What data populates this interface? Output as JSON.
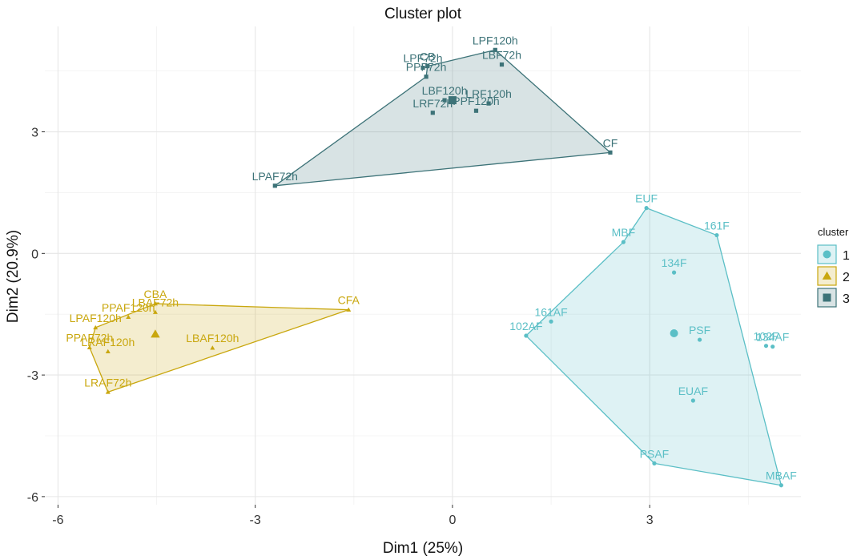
{
  "chart_data": {
    "type": "scatter",
    "title": "Cluster plot",
    "xlabel": "Dim1 (25%)",
    "ylabel": "Dim2 (20.9%)",
    "xlim": [
      -6.2,
      5.3
    ],
    "ylim": [
      -6.2,
      5.6
    ],
    "x_ticks": [
      -6,
      -3,
      0,
      3
    ],
    "y_ticks": [
      -6,
      -3,
      0,
      3
    ],
    "x_tick_labels": [
      "-6",
      "-3",
      "0",
      "3"
    ],
    "y_tick_labels": [
      "-6",
      "-3",
      "0",
      "3"
    ],
    "grid": true,
    "legend": {
      "title": "cluster",
      "position": "right",
      "entries": [
        "1",
        "2",
        "3"
      ]
    },
    "series": [
      {
        "name": "1",
        "color": "#5bbfc6",
        "shape": "circle",
        "hull": [
          "EUF",
          "161F",
          "MBAF",
          "PSAF",
          "102AF",
          "MBF"
        ],
        "centroid": {
          "x": 3.37,
          "y": -1.97
        },
        "points": [
          {
            "label": "EUF",
            "x": 2.95,
            "y": 1.12
          },
          {
            "label": "161F",
            "x": 4.02,
            "y": 0.45
          },
          {
            "label": "MBF",
            "x": 2.6,
            "y": 0.28
          },
          {
            "label": "134F",
            "x": 3.37,
            "y": -0.47
          },
          {
            "label": "161AF",
            "x": 1.5,
            "y": -1.68
          },
          {
            "label": "102AF",
            "x": 1.12,
            "y": -2.03
          },
          {
            "label": "PSF",
            "x": 3.76,
            "y": -2.13
          },
          {
            "label": "102F",
            "x": 4.77,
            "y": -2.28
          },
          {
            "label": "134AF",
            "x": 4.87,
            "y": -2.3
          },
          {
            "label": "EUAF",
            "x": 3.66,
            "y": -3.63
          },
          {
            "label": "PSAF",
            "x": 3.07,
            "y": -5.18
          },
          {
            "label": "MBAF",
            "x": 5.0,
            "y": -5.72
          }
        ]
      },
      {
        "name": "2",
        "color": "#c9a70e",
        "shape": "triangle",
        "hull": [
          "CBA",
          "CFA",
          "LRAF72h",
          "PPAF72h",
          "LPAF120h"
        ],
        "centroid": {
          "x": -4.52,
          "y": -1.99
        },
        "points": [
          {
            "label": "CBA",
            "x": -4.52,
            "y": -1.24
          },
          {
            "label": "LBAF72h",
            "x": -4.52,
            "y": -1.45
          },
          {
            "label": "PPAF120h",
            "x": -4.93,
            "y": -1.57
          },
          {
            "label": "LPAF120h",
            "x": -5.43,
            "y": -1.83
          },
          {
            "label": "PPAF72h",
            "x": -5.52,
            "y": -2.32
          },
          {
            "label": "LRAF120h",
            "x": -5.24,
            "y": -2.42
          },
          {
            "label": "LBAF120h",
            "x": -3.65,
            "y": -2.33
          },
          {
            "label": "CFA",
            "x": -1.58,
            "y": -1.39
          },
          {
            "label": "LRAF72h",
            "x": -5.24,
            "y": -3.42
          }
        ]
      },
      {
        "name": "3",
        "color": "#3d7378",
        "shape": "square",
        "hull": [
          "LPF120h",
          "CF",
          "LPAF72h",
          "PPF72h",
          "CB"
        ],
        "centroid": {
          "x": 0.0,
          "y": 3.78
        },
        "points": [
          {
            "label": "LPF120h",
            "x": 0.65,
            "y": 5.02
          },
          {
            "label": "LBF72h",
            "x": 0.75,
            "y": 4.66
          },
          {
            "label": "LPF72h",
            "x": -0.45,
            "y": 4.58
          },
          {
            "label": "CB",
            "x": -0.38,
            "y": 4.62
          },
          {
            "label": "PPF72h",
            "x": -0.4,
            "y": 4.36
          },
          {
            "label": "LBF120h",
            "x": -0.12,
            "y": 3.78
          },
          {
            "label": "LRF120h",
            "x": 0.55,
            "y": 3.7
          },
          {
            "label": "PPF120h",
            "x": 0.36,
            "y": 3.52
          },
          {
            "label": "LRF72h",
            "x": -0.3,
            "y": 3.47
          },
          {
            "label": "CF",
            "x": 2.4,
            "y": 2.49
          },
          {
            "label": "LPAF72h",
            "x": -2.7,
            "y": 1.67
          }
        ]
      }
    ]
  }
}
